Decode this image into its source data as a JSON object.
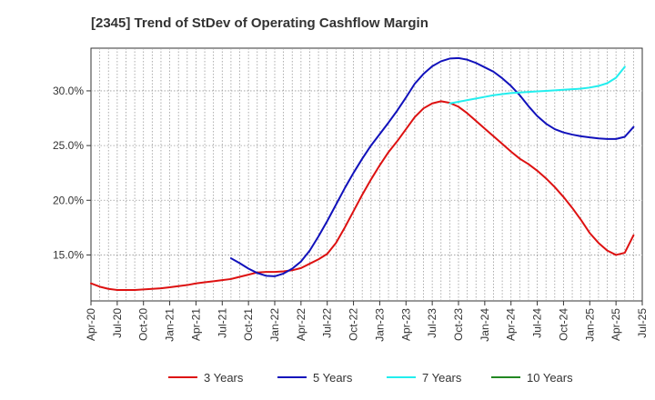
{
  "chart_data": {
    "type": "line",
    "title": "[2345]  Trend of StDev of Operating Cashflow Margin",
    "xlabel": "",
    "ylabel": "",
    "ylim": [
      10.8,
      33.9
    ],
    "yticks": [
      15.0,
      20.0,
      25.0,
      30.0
    ],
    "ytick_labels": [
      "15.0%",
      "20.0%",
      "25.0%",
      "30.0%"
    ],
    "x_ticks": [
      "Apr-20",
      "Jul-20",
      "Oct-20",
      "Jan-21",
      "Apr-21",
      "Jul-21",
      "Oct-21",
      "Jan-22",
      "Apr-22",
      "Jul-22",
      "Oct-22",
      "Jan-23",
      "Apr-23",
      "Jul-23",
      "Oct-23",
      "Jan-24",
      "Apr-24",
      "Jul-24",
      "Oct-24",
      "Jan-25",
      "Apr-25",
      "Jul-25"
    ],
    "grid": true,
    "legend_position": "bottom",
    "series": [
      {
        "name": "3 Years",
        "color": "#dd1111",
        "points": [
          [
            "2020-04",
            12.4
          ],
          [
            "2020-05",
            12.1
          ],
          [
            "2020-06",
            11.9
          ],
          [
            "2020-07",
            11.8
          ],
          [
            "2020-08",
            11.8
          ],
          [
            "2020-09",
            11.8
          ],
          [
            "2020-10",
            11.85
          ],
          [
            "2020-11",
            11.9
          ],
          [
            "2020-12",
            11.95
          ],
          [
            "2021-01",
            12.05
          ],
          [
            "2021-02",
            12.15
          ],
          [
            "2021-03",
            12.25
          ],
          [
            "2021-04",
            12.4
          ],
          [
            "2021-05",
            12.5
          ],
          [
            "2021-06",
            12.6
          ],
          [
            "2021-07",
            12.7
          ],
          [
            "2021-08",
            12.8
          ],
          [
            "2021-09",
            13.0
          ],
          [
            "2021-10",
            13.2
          ],
          [
            "2021-11",
            13.4
          ],
          [
            "2021-12",
            13.45
          ],
          [
            "2022-01",
            13.45
          ],
          [
            "2022-02",
            13.5
          ],
          [
            "2022-03",
            13.6
          ],
          [
            "2022-04",
            13.8
          ],
          [
            "2022-05",
            14.2
          ],
          [
            "2022-06",
            14.6
          ],
          [
            "2022-07",
            15.1
          ],
          [
            "2022-08",
            16.1
          ],
          [
            "2022-09",
            17.5
          ],
          [
            "2022-10",
            19.0
          ],
          [
            "2022-11",
            20.5
          ],
          [
            "2022-12",
            21.9
          ],
          [
            "2023-01",
            23.2
          ],
          [
            "2023-02",
            24.4
          ],
          [
            "2023-03",
            25.4
          ],
          [
            "2023-04",
            26.5
          ],
          [
            "2023-05",
            27.6
          ],
          [
            "2023-06",
            28.4
          ],
          [
            "2023-07",
            28.85
          ],
          [
            "2023-08",
            29.05
          ],
          [
            "2023-09",
            28.9
          ],
          [
            "2023-10",
            28.55
          ],
          [
            "2023-11",
            27.95
          ],
          [
            "2023-12",
            27.25
          ],
          [
            "2024-01",
            26.55
          ],
          [
            "2024-02",
            25.85
          ],
          [
            "2024-03",
            25.15
          ],
          [
            "2024-04",
            24.45
          ],
          [
            "2024-05",
            23.8
          ],
          [
            "2024-06",
            23.3
          ],
          [
            "2024-07",
            22.7
          ],
          [
            "2024-08",
            22.0
          ],
          [
            "2024-09",
            21.2
          ],
          [
            "2024-10",
            20.3
          ],
          [
            "2024-11",
            19.3
          ],
          [
            "2024-12",
            18.2
          ],
          [
            "2025-01",
            17.0
          ],
          [
            "2025-02",
            16.1
          ],
          [
            "2025-03",
            15.4
          ],
          [
            "2025-04",
            15.0
          ],
          [
            "2025-05",
            15.2
          ],
          [
            "2025-06",
            16.8
          ]
        ]
      },
      {
        "name": "5 Years",
        "color": "#1111bb",
        "points": [
          [
            "2021-08",
            14.7
          ],
          [
            "2021-09",
            14.25
          ],
          [
            "2021-10",
            13.75
          ],
          [
            "2021-11",
            13.35
          ],
          [
            "2021-12",
            13.1
          ],
          [
            "2022-01",
            13.05
          ],
          [
            "2022-02",
            13.3
          ],
          [
            "2022-03",
            13.75
          ],
          [
            "2022-04",
            14.4
          ],
          [
            "2022-05",
            15.4
          ],
          [
            "2022-06",
            16.7
          ],
          [
            "2022-07",
            18.1
          ],
          [
            "2022-08",
            19.6
          ],
          [
            "2022-09",
            21.1
          ],
          [
            "2022-10",
            22.5
          ],
          [
            "2022-11",
            23.8
          ],
          [
            "2022-12",
            25.0
          ],
          [
            "2023-01",
            26.05
          ],
          [
            "2023-02",
            27.1
          ],
          [
            "2023-03",
            28.2
          ],
          [
            "2023-04",
            29.4
          ],
          [
            "2023-05",
            30.65
          ],
          [
            "2023-06",
            31.55
          ],
          [
            "2023-07",
            32.25
          ],
          [
            "2023-08",
            32.7
          ],
          [
            "2023-09",
            32.95
          ],
          [
            "2023-10",
            33.0
          ],
          [
            "2023-11",
            32.85
          ],
          [
            "2023-12",
            32.55
          ],
          [
            "2024-01",
            32.15
          ],
          [
            "2024-02",
            31.75
          ],
          [
            "2024-03",
            31.15
          ],
          [
            "2024-04",
            30.45
          ],
          [
            "2024-05",
            29.6
          ],
          [
            "2024-06",
            28.6
          ],
          [
            "2024-07",
            27.7
          ],
          [
            "2024-08",
            27.0
          ],
          [
            "2024-09",
            26.5
          ],
          [
            "2024-10",
            26.2
          ],
          [
            "2024-11",
            26.0
          ],
          [
            "2024-12",
            25.85
          ],
          [
            "2025-01",
            25.75
          ],
          [
            "2025-02",
            25.65
          ],
          [
            "2025-03",
            25.6
          ],
          [
            "2025-04",
            25.6
          ],
          [
            "2025-05",
            25.8
          ],
          [
            "2025-06",
            26.7
          ]
        ]
      },
      {
        "name": "7 Years",
        "color": "#22eeee",
        "points": [
          [
            "2023-09",
            28.85
          ],
          [
            "2023-10",
            29.0
          ],
          [
            "2023-11",
            29.15
          ],
          [
            "2023-12",
            29.3
          ],
          [
            "2024-01",
            29.45
          ],
          [
            "2024-02",
            29.6
          ],
          [
            "2024-03",
            29.7
          ],
          [
            "2024-04",
            29.8
          ],
          [
            "2024-05",
            29.85
          ],
          [
            "2024-06",
            29.9
          ],
          [
            "2024-07",
            29.95
          ],
          [
            "2024-08",
            30.0
          ],
          [
            "2024-09",
            30.05
          ],
          [
            "2024-10",
            30.1
          ],
          [
            "2024-11",
            30.15
          ],
          [
            "2024-12",
            30.2
          ],
          [
            "2025-01",
            30.3
          ],
          [
            "2025-02",
            30.45
          ],
          [
            "2025-03",
            30.7
          ],
          [
            "2025-04",
            31.2
          ],
          [
            "2025-05",
            32.2
          ]
        ]
      },
      {
        "name": "10 Years",
        "color": "#228822",
        "points": []
      }
    ]
  }
}
